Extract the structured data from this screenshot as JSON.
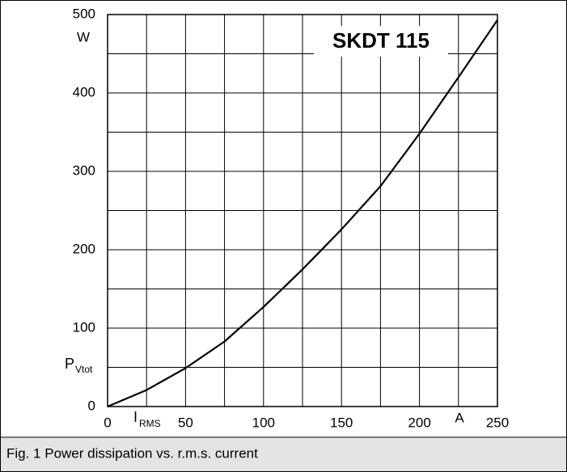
{
  "chart_data": {
    "type": "line",
    "title": "SKDT 115",
    "caption": "Fig. 1 Power dissipation vs. r.m.s. current",
    "x_label": {
      "symbol": "I",
      "subscript": "RMS",
      "unit": "A"
    },
    "y_label": {
      "symbol": "P",
      "subscript": "Vtot",
      "unit": "W"
    },
    "x": [
      0,
      25,
      50,
      75,
      100,
      125,
      150,
      175,
      200,
      225,
      250
    ],
    "series": [
      {
        "color": "#000000",
        "values": [
          0,
          21,
          49,
          83,
          127,
          175,
          226,
          281,
          348,
          420,
          493
        ]
      }
    ],
    "xlim": [
      0,
      250
    ],
    "xticks": [
      0,
      50,
      100,
      150,
      200,
      250
    ],
    "ylim": [
      0,
      500
    ],
    "yticks": [
      0,
      100,
      200,
      300,
      400,
      500
    ],
    "grid": true,
    "grid_divisions": 2
  }
}
